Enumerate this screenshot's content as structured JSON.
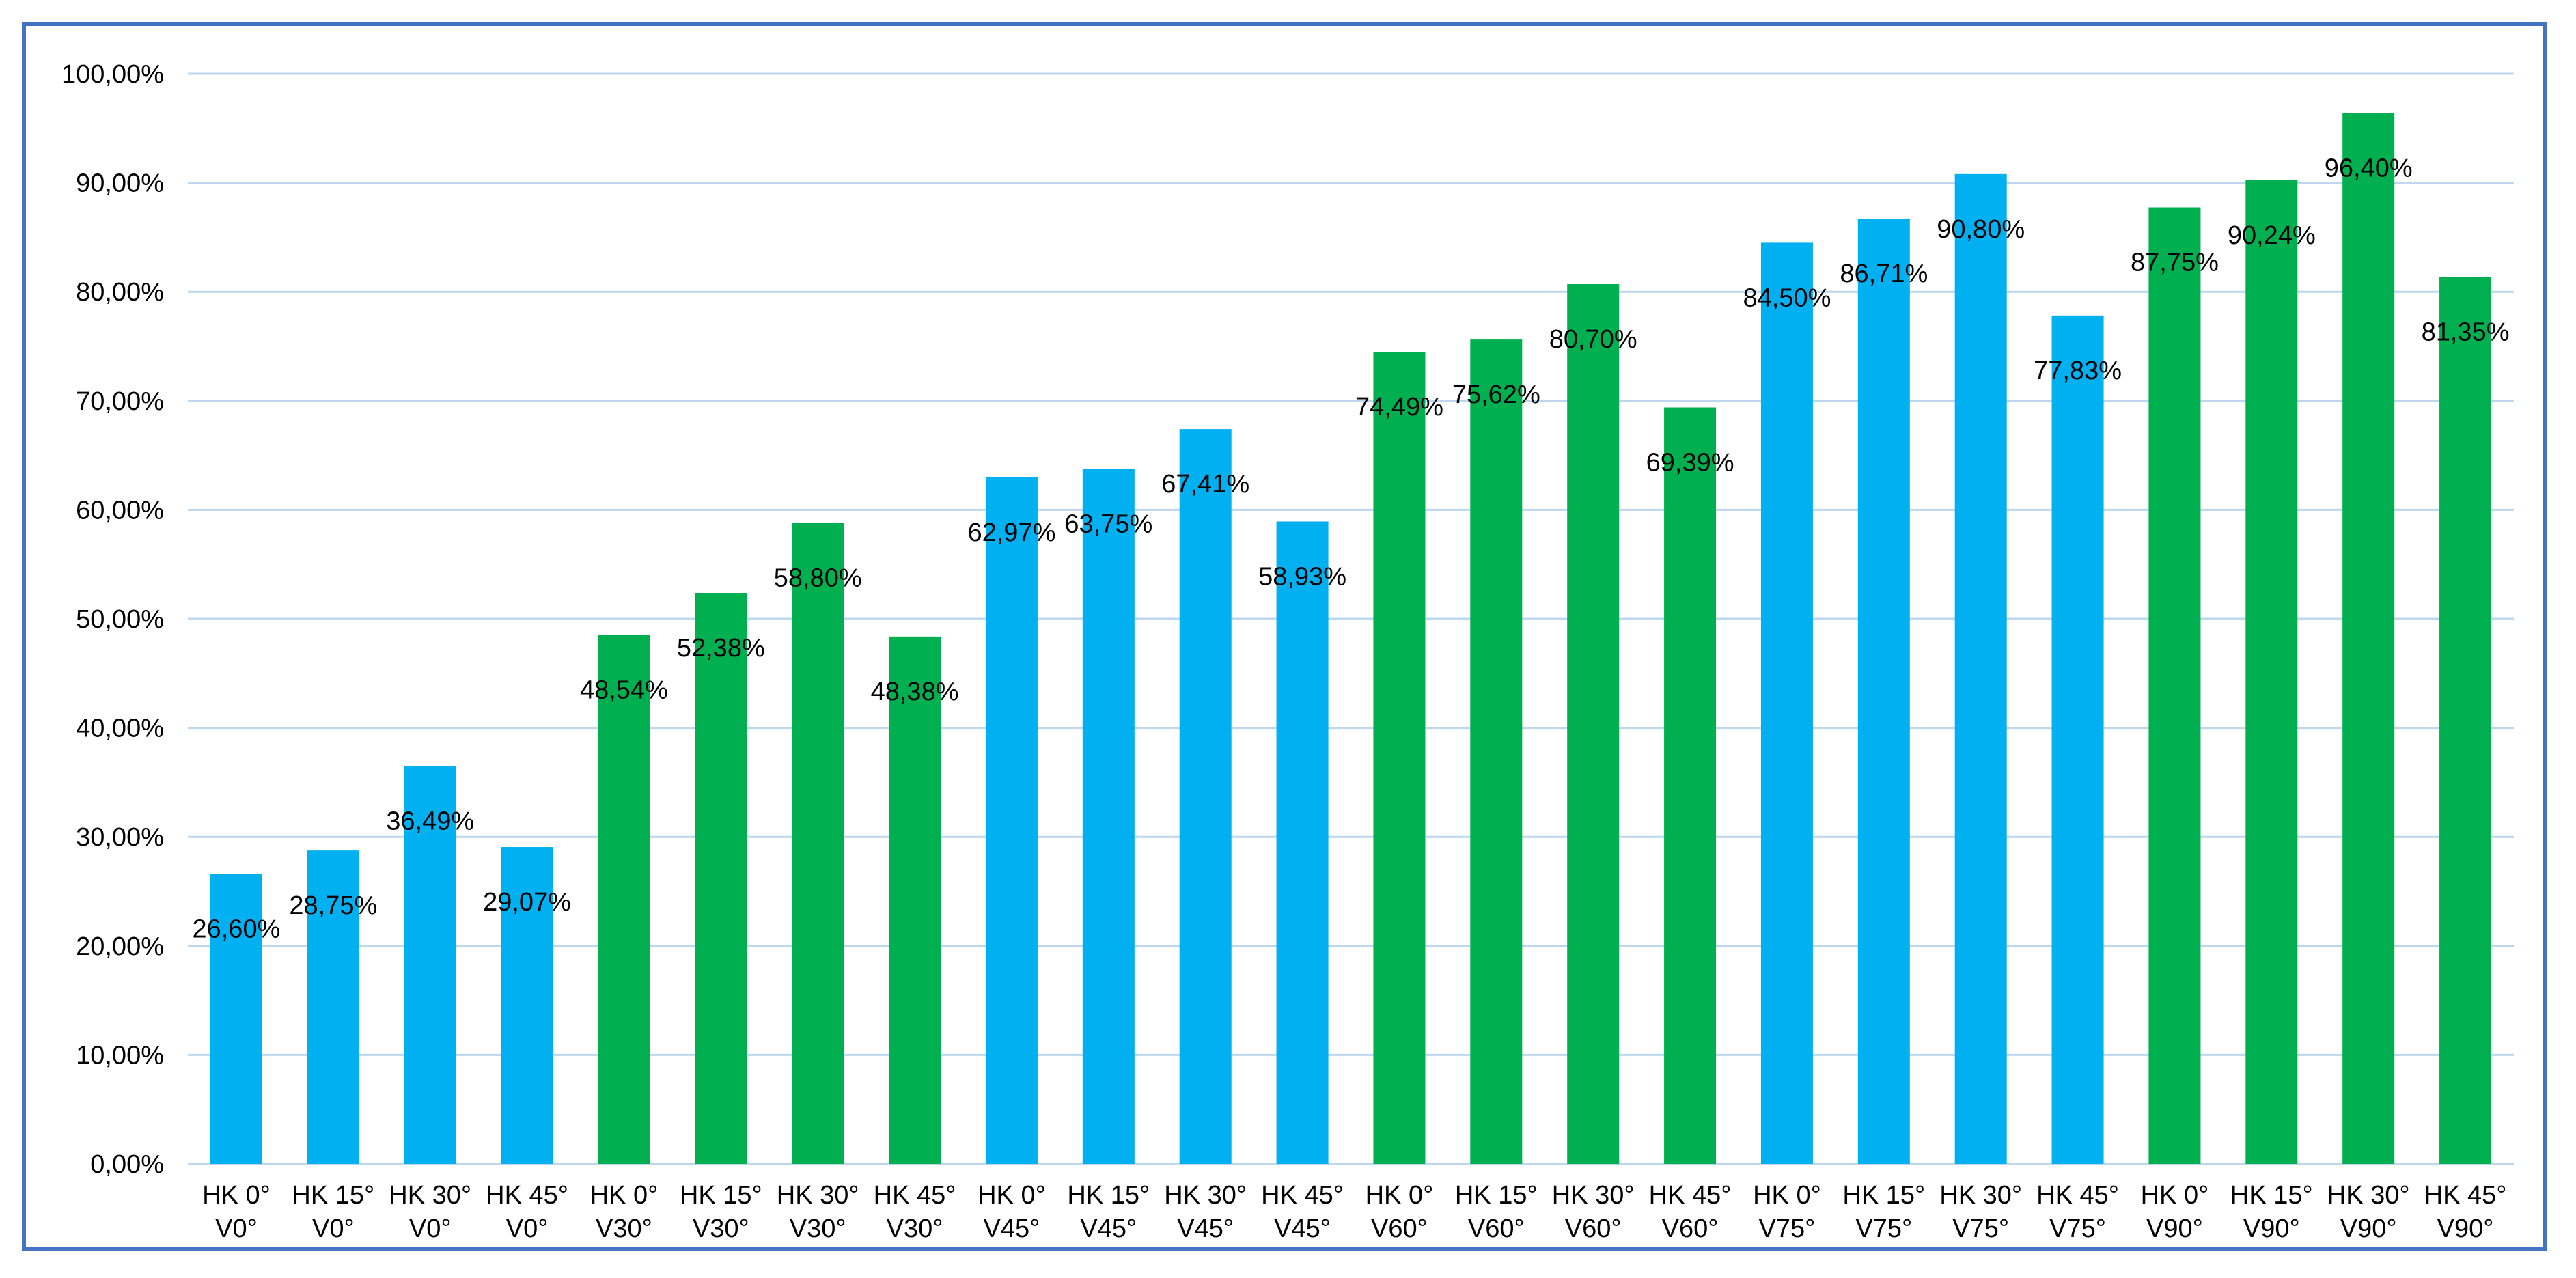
{
  "chart_data": {
    "type": "bar",
    "title": "",
    "xlabel": "",
    "ylabel": "",
    "ylim": [
      0,
      100
    ],
    "yticks": [
      "0,00%",
      "10,00%",
      "20,00%",
      "30,00%",
      "40,00%",
      "50,00%",
      "60,00%",
      "70,00%",
      "80,00%",
      "90,00%",
      "100,00%"
    ],
    "grid": true,
    "legend": "none",
    "colors": {
      "blue": "#00b0f0",
      "green": "#00b050",
      "gridline": "#bdd7ee",
      "border": "#4472c4"
    },
    "categories": [
      [
        "HK 0°",
        "V0°"
      ],
      [
        "HK 15°",
        "V0°"
      ],
      [
        "HK 30°",
        "V0°"
      ],
      [
        "HK 45°",
        "V0°"
      ],
      [
        "HK 0°",
        "V30°"
      ],
      [
        "HK 15°",
        "V30°"
      ],
      [
        "HK 30°",
        "V30°"
      ],
      [
        "HK 45°",
        "V30°"
      ],
      [
        "HK 0°",
        "V45°"
      ],
      [
        "HK 15°",
        "V45°"
      ],
      [
        "HK 30°",
        "V45°"
      ],
      [
        "HK 45°",
        "V45°"
      ],
      [
        "HK 0°",
        "V60°"
      ],
      [
        "HK 15°",
        "V60°"
      ],
      [
        "HK 30°",
        "V60°"
      ],
      [
        "HK 45°",
        "V60°"
      ],
      [
        "HK 0°",
        "V75°"
      ],
      [
        "HK 15°",
        "V75°"
      ],
      [
        "HK 30°",
        "V75°"
      ],
      [
        "HK 45°",
        "V75°"
      ],
      [
        "HK 0°",
        "V90°"
      ],
      [
        "HK 15°",
        "V90°"
      ],
      [
        "HK 30°",
        "V90°"
      ],
      [
        "HK 45°",
        "V90°"
      ]
    ],
    "values": [
      26.6,
      28.75,
      36.49,
      29.07,
      48.54,
      52.38,
      58.8,
      48.38,
      62.97,
      63.75,
      67.41,
      58.93,
      74.49,
      75.62,
      80.7,
      69.39,
      84.5,
      86.71,
      90.8,
      77.83,
      87.75,
      90.24,
      96.4,
      81.35
    ],
    "data_labels": [
      "26,60%",
      "28,75%",
      "36,49%",
      "29,07%",
      "48,54%",
      "52,38%",
      "58,80%",
      "48,38%",
      "62,97%",
      "63,75%",
      "67,41%",
      "58,93%",
      "74,49%",
      "75,62%",
      "80,70%",
      "69,39%",
      "84,50%",
      "86,71%",
      "90,80%",
      "77,83%",
      "87,75%",
      "90,24%",
      "96,40%",
      "81,35%"
    ],
    "bar_colors": [
      "blue",
      "blue",
      "blue",
      "blue",
      "green",
      "green",
      "green",
      "green",
      "blue",
      "blue",
      "blue",
      "blue",
      "green",
      "green",
      "green",
      "green",
      "blue",
      "blue",
      "blue",
      "blue",
      "green",
      "green",
      "green",
      "green"
    ]
  }
}
